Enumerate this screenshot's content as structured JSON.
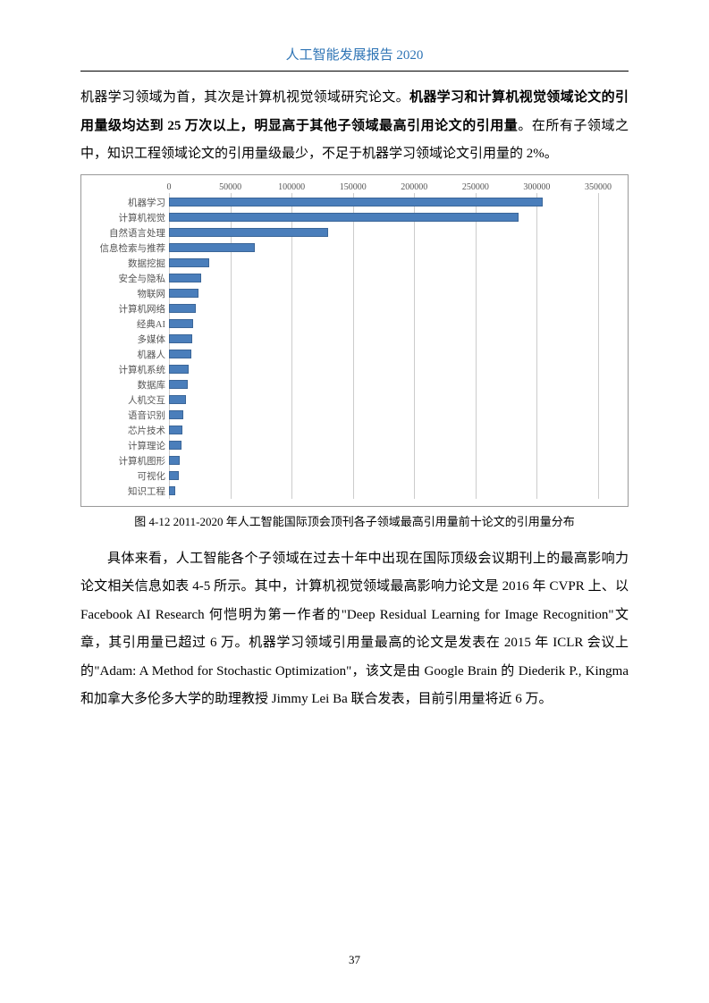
{
  "header": {
    "title": "人工智能发展报告 2020"
  },
  "para1_a": "机器学习领域为首，其次是计算机视觉领域研究论文。",
  "para1_b": "机器学习和计算机视觉领域论文的引用量级均达到 25 万次以上，明显高于其他子领域最高引用论文的引用量",
  "para1_c": "。在所有子领域之中，知识工程领域论文的引用量级最少，不足于机器学习领域论文引用量的 2%。",
  "chart": {
    "type": "bar-horizontal",
    "x_max": 350000,
    "x_tick_step": 50000,
    "x_ticks": [
      0,
      50000,
      100000,
      150000,
      200000,
      250000,
      300000,
      350000
    ],
    "bar_color": "#4a7ebb",
    "bar_border": "#3b6698",
    "grid_color": "#cccccc",
    "label_color": "#555555",
    "label_fontsize": 10.5,
    "tick_fontsize": 10,
    "background_color": "#ffffff",
    "categories": [
      {
        "label": "机器学习",
        "value": 305000
      },
      {
        "label": "计算机视觉",
        "value": 285000
      },
      {
        "label": "自然语言处理",
        "value": 130000
      },
      {
        "label": "信息检索与推荐",
        "value": 70000
      },
      {
        "label": "数据挖掘",
        "value": 33000
      },
      {
        "label": "安全与隐私",
        "value": 26000
      },
      {
        "label": "物联网",
        "value": 24000
      },
      {
        "label": "计算机网络",
        "value": 22000
      },
      {
        "label": "经典AI",
        "value": 20000
      },
      {
        "label": "多媒体",
        "value": 19000
      },
      {
        "label": "机器人",
        "value": 18000
      },
      {
        "label": "计算机系统",
        "value": 16000
      },
      {
        "label": "数据库",
        "value": 15000
      },
      {
        "label": "人机交互",
        "value": 14000
      },
      {
        "label": "语音识别",
        "value": 12000
      },
      {
        "label": "芯片技术",
        "value": 11000
      },
      {
        "label": "计算理论",
        "value": 10000
      },
      {
        "label": "计算机图形",
        "value": 9000
      },
      {
        "label": "可视化",
        "value": 8000
      },
      {
        "label": "知识工程",
        "value": 5000
      }
    ]
  },
  "caption": "图  4-12 2011-2020 年人工智能国际顶会顶刊各子领域最高引用量前十论文的引用量分布",
  "para2": "具体来看，人工智能各个子领域在过去十年中出现在国际顶级会议期刊上的最高影响力论文相关信息如表 4-5 所示。其中，计算机视觉领域最高影响力论文是 2016 年 CVPR 上、以 Facebook AI Research 何恺明为第一作者的\"Deep Residual Learning for Image Recognition\"文章，其引用量已超过 6 万。机器学习领域引用量最高的论文是发表在 2015 年 ICLR 会议上的\"Adam: A Method for Stochastic Optimization\"，该文是由 Google Brain 的 Diederik P., Kingma 和加拿大多伦多大学的助理教授 Jimmy Lei Ba 联合发表，目前引用量将近 6 万。",
  "page_number": "37"
}
